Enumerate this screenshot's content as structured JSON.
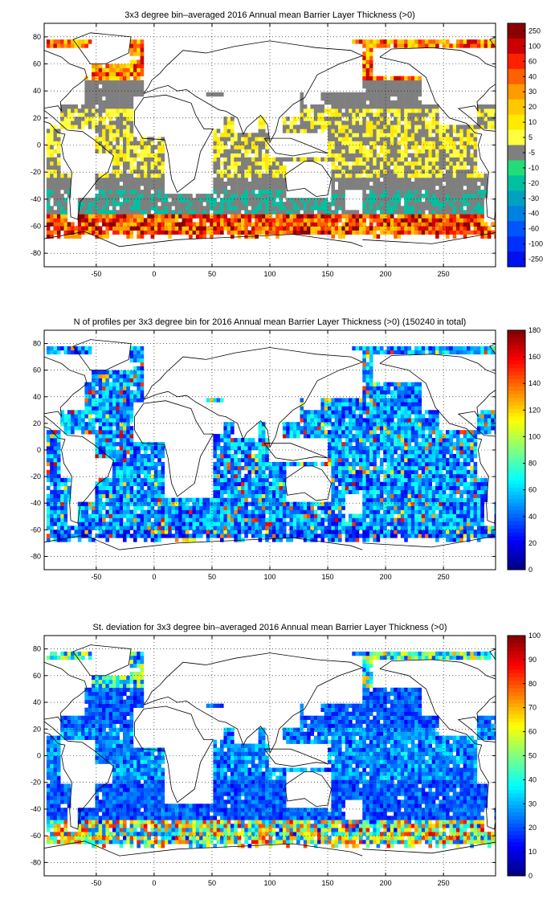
{
  "chart_data": [
    {
      "type": "heatmap",
      "title": "3x3 degree bin–averaged 2016 Annual mean Barrier Layer Thickness (>0)",
      "xlim": [
        -95,
        295
      ],
      "ylim": [
        -90,
        90
      ],
      "xticks": [
        -50,
        0,
        50,
        100,
        150,
        200,
        250
      ],
      "yticks": [
        80,
        60,
        40,
        20,
        0,
        -20,
        -40,
        -60,
        -80
      ],
      "grid": true,
      "colorbar": {
        "scale": "categorical",
        "labels": [
          "250",
          "100",
          "60",
          "40",
          "30",
          "20",
          "10",
          "5",
          "-5",
          "-10",
          "-20",
          "-30",
          "-40",
          "-60",
          "-100",
          "-250"
        ],
        "colors": [
          "#8b0000",
          "#cc0000",
          "#ff2000",
          "#ff6000",
          "#ff9a00",
          "#ffc800",
          "#ffea00",
          "#ffff40",
          "#7f7f7f",
          "#22dd77",
          "#00c0a0",
          "#00a0c0",
          "#0080e0",
          "#0055ff",
          "#0030ff",
          "#0010ee"
        ]
      }
    },
    {
      "type": "heatmap",
      "title": "N of profiles per 3x3 degree bin for 2016 Annual mean Barrier Layer Thickness (>0) (150240 in total)",
      "xlim": [
        -95,
        295
      ],
      "ylim": [
        -90,
        90
      ],
      "xticks": [
        -50,
        0,
        50,
        100,
        150,
        200,
        250
      ],
      "yticks": [
        80,
        60,
        40,
        20,
        0,
        -20,
        -40,
        -60,
        -80
      ],
      "grid": true,
      "colorbar": {
        "scale": "continuous",
        "colormap": "jet",
        "range": [
          0,
          180
        ],
        "ticks": [
          0,
          20,
          40,
          60,
          80,
          100,
          120,
          140,
          160,
          180
        ]
      }
    },
    {
      "type": "heatmap",
      "title": "St. deviation for 3x3 degree bin–averaged 2016 Annual mean Barrier Layer Thickness (>0)",
      "xlim": [
        -95,
        295
      ],
      "ylim": [
        -90,
        90
      ],
      "xticks": [
        -50,
        0,
        50,
        100,
        150,
        200,
        250
      ],
      "yticks": [
        80,
        60,
        40,
        20,
        0,
        -20,
        -40,
        -60,
        -80
      ],
      "grid": true,
      "colorbar": {
        "scale": "continuous",
        "colormap": "jet",
        "range": [
          0,
          100
        ],
        "ticks": [
          0,
          10,
          20,
          30,
          40,
          50,
          60,
          70,
          80,
          90,
          100
        ]
      }
    }
  ]
}
